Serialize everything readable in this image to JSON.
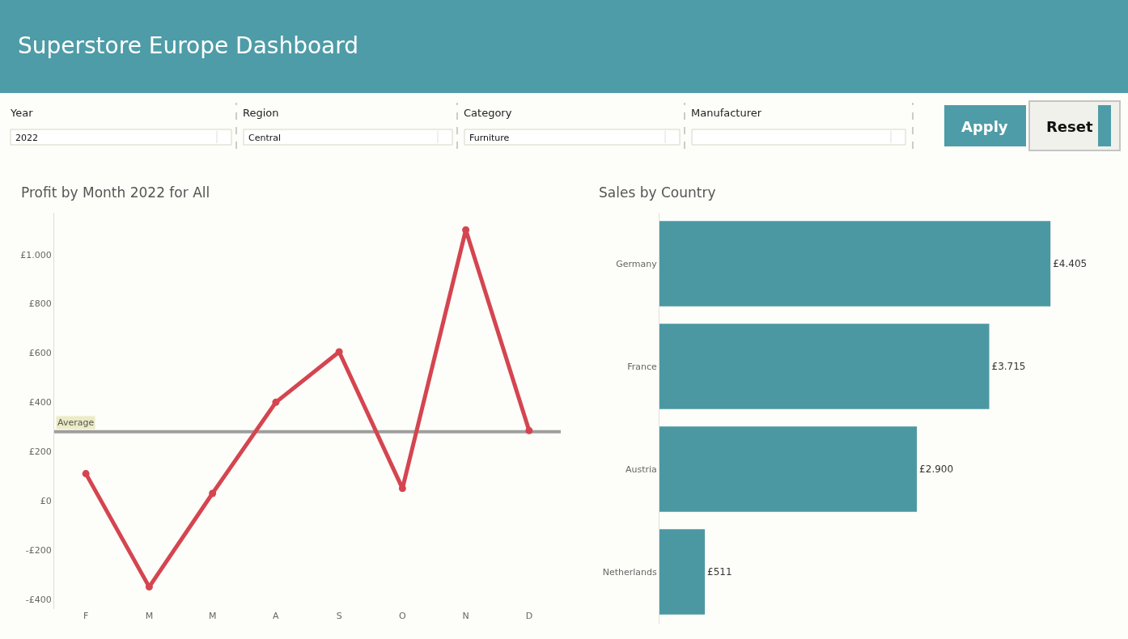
{
  "chart_data": [
    {
      "type": "other",
      "title": "Superstore Europe Dashboard",
      "annotations": [
        "Year",
        "2022",
        "Region",
        "Central",
        "Category",
        "Furniture",
        "Manufacturer",
        "Apply",
        "Reset"
      ]
    },
    {
      "type": "line",
      "title": "Profit by Month 2022 for All",
      "categories": [
        "F",
        "M",
        "M",
        "A",
        "S",
        "O",
        "N",
        "D"
      ],
      "series": [
        {
          "color": "#d44550",
          "values": [
            110,
            -350,
            30,
            400,
            605,
            50,
            1100,
            285
          ]
        }
      ],
      "ylim": [
        -440,
        1170
      ],
      "yticks": [
        {
          "value": -400,
          "label": "-£400"
        },
        {
          "value": -200,
          "label": "-£200"
        },
        {
          "value": 0,
          "label": "£0"
        },
        {
          "value": 200,
          "label": "£200"
        },
        {
          "value": 400,
          "label": "£400"
        },
        {
          "value": 600,
          "label": "£600"
        },
        {
          "value": 800,
          "label": "£800"
        },
        {
          "value": 1000,
          "label": "£1.000"
        }
      ],
      "marker": "circle",
      "line_style": "solid",
      "ref_lines": [
        {
          "axis": "y",
          "value": 280,
          "label": "Average",
          "color": "#9e9e9e"
        }
      ]
    },
    {
      "type": "bar",
      "orientation": "horizontal",
      "title": "Sales by Country",
      "categories": [
        "Germany",
        "France",
        "Austria",
        "Netherlands"
      ],
      "values": [
        4405,
        3715,
        2900,
        511
      ],
      "color": "#4b98a3",
      "value_labels": [
        "£4.405",
        "£3.715",
        "£2.900",
        "£511"
      ],
      "tick_labels": "y"
    }
  ]
}
